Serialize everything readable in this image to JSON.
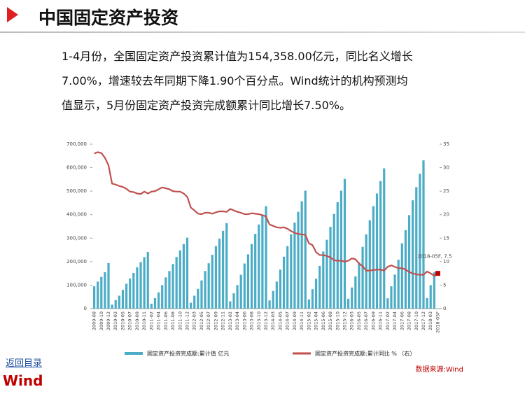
{
  "header": {
    "title": "中国固定资产投资"
  },
  "body": {
    "lines": [
      "1-4月份，全国固定资产投资累计值为154,358.00亿元，同比名义增长",
      "7.00%，增速较去年同期下降1.90个百分点。Wind统计的机构预测均",
      "值显示，5月份固定资产投资完成额累计同比增长7.50%。"
    ]
  },
  "chart_data": {
    "type": "bar",
    "categories": [
      "2009-08",
      null,
      "2009-10",
      null,
      "2009-12",
      null,
      "2010-03",
      null,
      "2010-05",
      null,
      "2010-07",
      null,
      "2010-09",
      null,
      "2010-11",
      null,
      "2011-02",
      null,
      "2011-04",
      null,
      "2011-06",
      null,
      "2011-08",
      null,
      "2011-10",
      null,
      "2011-12",
      null,
      "2012-03",
      null,
      "2012-05",
      null,
      "2012-07",
      null,
      "2012-09",
      null,
      "2012-11",
      null,
      "2013-02",
      null,
      "2013-04",
      null,
      "2013-06",
      null,
      "2013-08",
      null,
      "2013-10",
      null,
      "2013-12",
      null,
      "2014-03",
      null,
      "2014-05",
      null,
      "2014-07",
      null,
      "2014-09",
      null,
      "2014-11",
      null,
      "2015-02",
      null,
      "2015-04",
      null,
      "2015-06",
      null,
      "2015-08",
      null,
      "2015-10",
      null,
      "2015-12",
      null,
      "2016-03",
      null,
      "2016-05",
      null,
      "2016-07",
      null,
      "2016-09",
      null,
      "2016-11",
      null,
      "2017-02",
      null,
      "2017-04",
      null,
      "2017-06",
      null,
      "2017-08",
      null,
      "2017-10",
      null,
      "2017-12",
      null,
      "2018-03",
      null,
      "2018-05F"
    ],
    "series": [
      {
        "name": "固定资产投资完成额:累计值 亿元",
        "type": "bar",
        "color": "#4bacc6",
        "values": [
          95000,
          115000,
          135000,
          155000,
          194000,
          17000,
          36000,
          55000,
          80000,
          106000,
          128000,
          152000,
          176000,
          198000,
          219000,
          241000,
          21000,
          45000,
          69000,
          100000,
          133000,
          160000,
          190000,
          220000,
          248000,
          275000,
          302000,
          25000,
          55000,
          84000,
          120000,
          160000,
          193000,
          229000,
          266000,
          298000,
          331000,
          364000,
          31000,
          65000,
          100000,
          144000,
          192000,
          231000,
          275000,
          318000,
          358000,
          397000,
          436000,
          35000,
          75000,
          115000,
          166000,
          221000,
          266000,
          316000,
          366000,
          412000,
          457000,
          502000,
          39000,
          83000,
          127000,
          182000,
          243000,
          293000,
          348000,
          403000,
          453000,
          502000,
          552000,
          42000,
          90000,
          137000,
          197000,
          263000,
          316000,
          376000,
          436000,
          490000,
          543000,
          597000,
          44000,
          95000,
          145000,
          208000,
          278000,
          334000,
          398000,
          461000,
          517000,
          574000,
          631000,
          45000,
          100000,
          154358,
          null
        ]
      },
      {
        "name": "固定资产投资完成额:累计同比 % （右）",
        "type": "line",
        "axis": "y2",
        "color": "#c0504d",
        "values": [
          33.0,
          33.3,
          33.1,
          32.1,
          30.5,
          26.6,
          26.4,
          26.1,
          25.9,
          25.5,
          24.9,
          24.8,
          24.5,
          24.4,
          24.9,
          24.5,
          24.9,
          25.0,
          25.4,
          25.8,
          25.6,
          25.4,
          25.0,
          24.9,
          24.9,
          24.5,
          23.8,
          21.5,
          20.9,
          20.2,
          20.1,
          20.4,
          20.4,
          20.2,
          20.5,
          20.7,
          20.7,
          20.6,
          21.2,
          20.9,
          20.6,
          20.4,
          20.1,
          20.1,
          20.3,
          20.2,
          20.1,
          19.9,
          19.6,
          17.9,
          17.6,
          17.3,
          17.2,
          17.3,
          17.0,
          16.5,
          16.1,
          15.9,
          15.8,
          15.7,
          13.9,
          13.5,
          12.0,
          11.4,
          11.4,
          11.2,
          10.9,
          10.3,
          10.2,
          10.2,
          10.0,
          10.2,
          10.7,
          10.5,
          9.6,
          9.0,
          8.1,
          8.1,
          8.2,
          8.3,
          8.3,
          8.1,
          8.9,
          9.2,
          8.9,
          8.6,
          8.6,
          8.3,
          7.8,
          7.5,
          7.3,
          7.2,
          7.2,
          7.9,
          7.5,
          7.0,
          7.5
        ]
      }
    ],
    "ylim": [
      0,
      700000
    ],
    "yticks": [
      0,
      {
        "value": 100000,
        "label": "100,000"
      },
      {
        "value": 200000,
        "label": "200,000"
      },
      {
        "value": 300000,
        "label": "300,000"
      },
      {
        "value": 400000,
        "label": "400,000"
      },
      {
        "value": 500000,
        "label": "500,000"
      },
      {
        "value": 600000,
        "label": "600,000"
      },
      {
        "value": 700000,
        "label": "700,000"
      }
    ],
    "y2lim": [
      0,
      35
    ],
    "y2ticks": [
      0,
      5,
      10,
      15,
      20,
      25,
      30,
      35
    ],
    "annotations": [
      {
        "text": "2018-05F, 7.5"
      }
    ],
    "legend": "bottom"
  },
  "source": "数据来源:Wind",
  "logo": {
    "link": "返回目录",
    "brand": "Wind"
  }
}
